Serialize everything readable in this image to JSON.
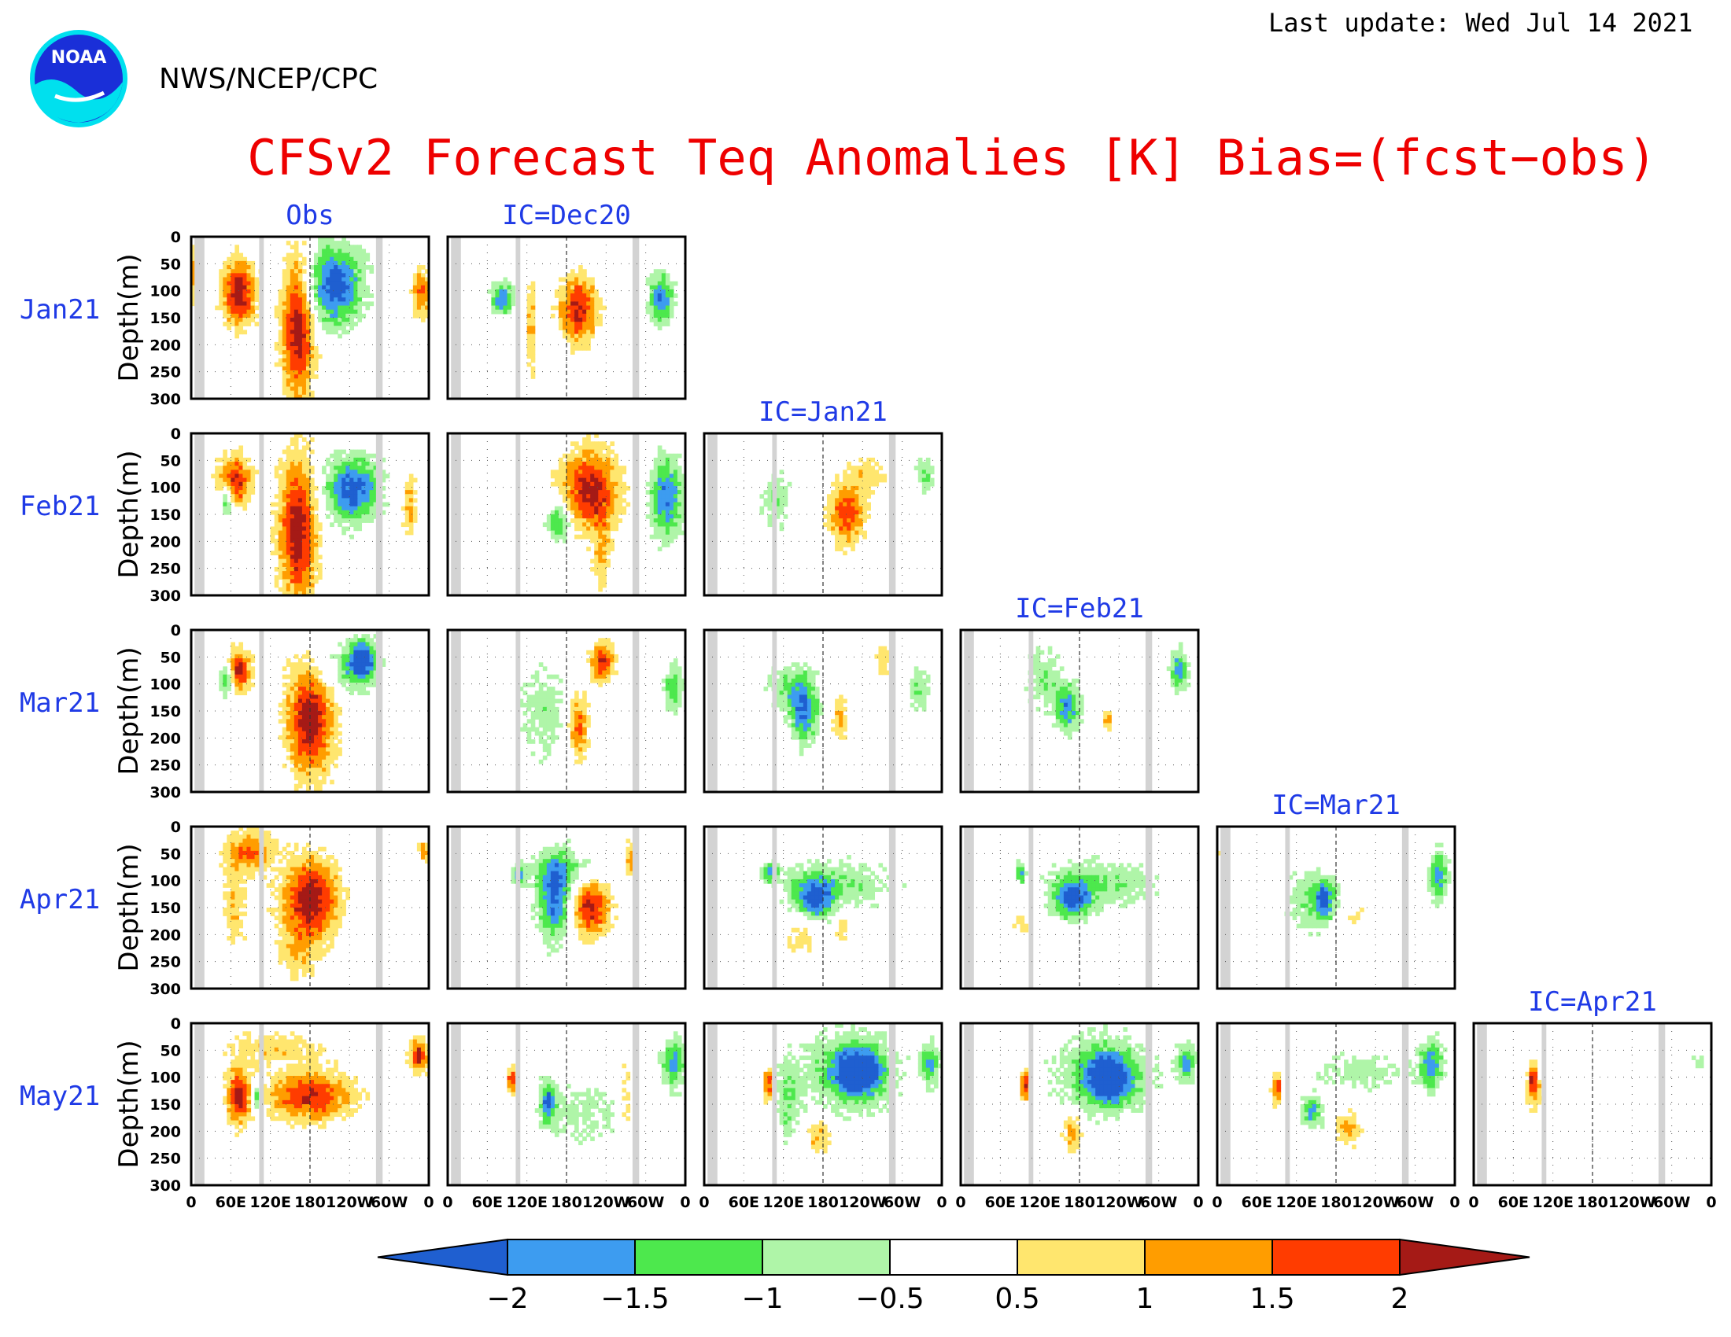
{
  "header": {
    "last_update": "Last update: Wed Jul 14 2021",
    "org": "NWS/NCEP/CPC",
    "logo_text": "NOAA",
    "title": "CFSv2 Forecast Teq Anomalies [K] Bias=(fcst−obs)"
  },
  "colors": {
    "title": "#ee0000",
    "labels": "#1f3ae6",
    "shading": [
      "#1f5fd0",
      "#3d9cf0",
      "#4de84d",
      "#aff5a8",
      "#ffffff",
      "#ffe66e",
      "#ff9d00",
      "#ff3c00",
      "#a51a16"
    ],
    "land_mask": "#d3d3d3"
  },
  "chart_data": {
    "type": "heatmap",
    "variable": "Teq Anomalies [K]",
    "columns": [
      "Obs",
      "IC=Dec20",
      "IC=Jan21",
      "IC=Feb21",
      "IC=Mar21",
      "IC=Apr21"
    ],
    "rows": [
      "Jan21",
      "Feb21",
      "Mar21",
      "Apr21",
      "May21"
    ],
    "ylabel": "Depth(m)",
    "y_ticks": [
      "0",
      "50",
      "100",
      "150",
      "200",
      "250",
      "300"
    ],
    "ylim": [
      300,
      0
    ],
    "x_ticks": [
      "0",
      "60E",
      "120E",
      "180",
      "120W",
      "60W",
      "0"
    ],
    "xlim_deg_east": [
      0,
      360
    ],
    "land_mask_lon_ranges": [
      [
        5,
        20
      ],
      [
        103,
        110
      ],
      [
        280,
        290
      ]
    ],
    "dateline_deg_east": 180,
    "colorbar": {
      "ticks": [
        "−2",
        "−1.5",
        "−1",
        "−0.5",
        "0.5",
        "1",
        "1.5",
        "2"
      ],
      "levels": [
        -2,
        -1.5,
        -1,
        -0.5,
        0.5,
        1,
        1.5,
        2
      ],
      "extend": "both"
    },
    "approximate_anomaly_centers": [
      {
        "panel": "Jan21 Obs",
        "lon": 60,
        "depth": 100,
        "value": 2.0
      },
      {
        "panel": "Jan21 Obs",
        "lon": 155,
        "depth": 180,
        "value": 2.0
      },
      {
        "panel": "Jan21 Obs",
        "lon": 215,
        "depth": 90,
        "value": -2.0
      },
      {
        "panel": "Jan21 IC=Dec20",
        "lon": 200,
        "depth": 140,
        "value": 1.8
      },
      {
        "panel": "Jan21 IC=Dec20",
        "lon": 320,
        "depth": 110,
        "value": -1.8
      },
      {
        "panel": "Feb21 Obs",
        "lon": 160,
        "depth": 170,
        "value": 2.0
      },
      {
        "panel": "Feb21 Obs",
        "lon": 230,
        "depth": 90,
        "value": -2.0
      },
      {
        "panel": "Feb21 IC=Jan21",
        "lon": 220,
        "depth": 160,
        "value": 1.6
      },
      {
        "panel": "Mar21 Obs",
        "lon": 160,
        "depth": 150,
        "value": 2.0
      },
      {
        "panel": "Mar21 IC=Feb21",
        "lon": 160,
        "depth": 150,
        "value": -1.7
      },
      {
        "panel": "Apr21 Obs",
        "lon": 165,
        "depth": 130,
        "value": 2.0
      },
      {
        "panel": "Apr21 IC=Dec20",
        "lon": 225,
        "depth": 160,
        "value": 1.8
      },
      {
        "panel": "May21 Obs",
        "lon": 170,
        "depth": 130,
        "value": 1.7
      },
      {
        "panel": "May21 IC=Jan21",
        "lon": 220,
        "depth": 90,
        "value": -2.0
      },
      {
        "panel": "May21 IC=Apr21",
        "lon": 80,
        "depth": 110,
        "value": 1.8
      }
    ]
  }
}
